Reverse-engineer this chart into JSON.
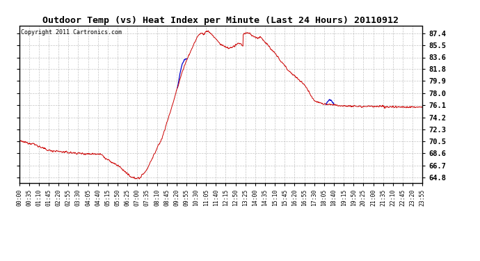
{
  "title": "Outdoor Temp (vs) Heat Index per Minute (Last 24 Hours) 20110912",
  "copyright": "Copyright 2011 Cartronics.com",
  "yticks": [
    64.8,
    66.7,
    68.6,
    70.5,
    72.3,
    74.2,
    76.1,
    78.0,
    79.9,
    81.8,
    83.6,
    85.5,
    87.4
  ],
  "ylim": [
    64.0,
    88.5
  ],
  "bg_color": "#ffffff",
  "plot_bg_color": "#ffffff",
  "grid_color": "#aaaaaa",
  "line_color_red": "#cc0000",
  "line_color_blue": "#0000cc",
  "xtick_labels": [
    "00:00",
    "00:35",
    "01:10",
    "01:45",
    "02:20",
    "02:55",
    "03:30",
    "04:05",
    "04:40",
    "05:15",
    "05:50",
    "06:25",
    "07:00",
    "07:35",
    "08:10",
    "08:45",
    "09:20",
    "09:55",
    "10:30",
    "11:05",
    "11:40",
    "12:15",
    "12:50",
    "13:25",
    "14:00",
    "14:35",
    "15:10",
    "15:45",
    "16:20",
    "16:55",
    "17:30",
    "18:05",
    "18:40",
    "19:15",
    "19:50",
    "20:25",
    "21:00",
    "21:35",
    "22:10",
    "22:45",
    "23:20",
    "23:55"
  ]
}
